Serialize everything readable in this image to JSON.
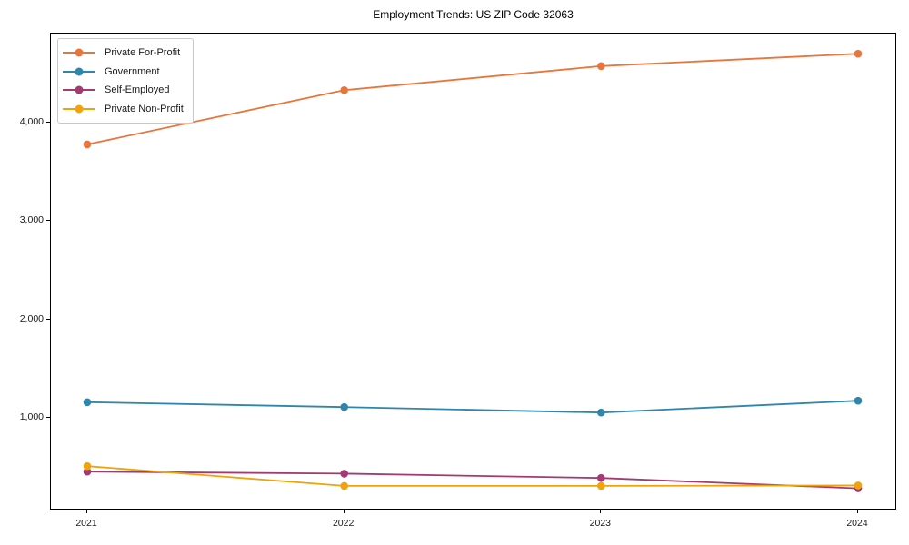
{
  "figure": {
    "title": "Employment Trends: US ZIP Code 32063"
  },
  "chart_data": {
    "type": "line",
    "title": "Employment Trends: US ZIP Code 32063",
    "xlabel": "",
    "ylabel": "",
    "grid": false,
    "legend_position": "upper-left",
    "marker": "circle",
    "x": [
      2021,
      2022,
      2023,
      2024
    ],
    "x_tick_labels": [
      "2021",
      "2022",
      "2023",
      "2024"
    ],
    "ylim": [
      60,
      4905
    ],
    "yticks": [
      {
        "value": 1000,
        "label": "1,000"
      },
      {
        "value": 2000,
        "label": "2,000"
      },
      {
        "value": 3000,
        "label": "3,000"
      },
      {
        "value": 4000,
        "label": "4,000"
      }
    ],
    "series": [
      {
        "name": "Private For-Profit",
        "color": "#E8763C",
        "values": [
          3780,
          4330,
          4575,
          4700
        ]
      },
      {
        "name": "Government",
        "color": "#2E86AB",
        "values": [
          1160,
          1110,
          1055,
          1175
        ]
      },
      {
        "name": "Self-Employed",
        "color": "#A23B72",
        "values": [
          455,
          435,
          390,
          285
        ]
      },
      {
        "name": "Private Non-Profit",
        "color": "#F0A30A",
        "values": [
          510,
          310,
          310,
          315
        ]
      }
    ],
    "axis_color": "#000000",
    "text_color": "#1a1a1a"
  }
}
